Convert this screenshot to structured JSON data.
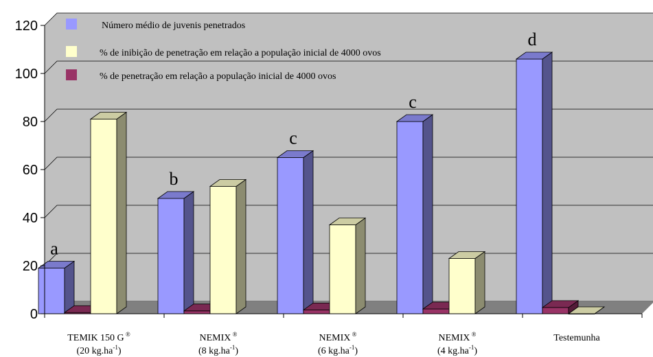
{
  "chart_data": {
    "type": "bar",
    "ylim": [
      0,
      120
    ],
    "yticks": [
      "0",
      "20",
      "40",
      "60",
      "80",
      "100",
      "120"
    ],
    "categories": [
      {
        "line1": "TEMIK 150 G",
        "line1_sup": "®",
        "line2": "(20 kg.ha",
        "line2_sup": "-1",
        "line2_end": ")"
      },
      {
        "line1": "NEMIX",
        "line1_sup": "®",
        "line2": "(8 kg.ha",
        "line2_sup": "-1",
        "line2_end": ")"
      },
      {
        "line1": "NEMIX",
        "line1_sup": "®",
        "line2": "(6 kg.ha",
        "line2_sup": "-1",
        "line2_end": ")"
      },
      {
        "line1": "NEMIX",
        "line1_sup": "®",
        "line2": "(4 kg.ha",
        "line2_sup": "-1",
        "line2_end": ")"
      },
      {
        "line1": "Testemunha",
        "line1_sup": "",
        "line2": "",
        "line2_sup": "",
        "line2_end": ""
      }
    ],
    "series": [
      {
        "name": "Número médio de juvenis penetrados",
        "values": [
          19,
          48,
          65,
          80,
          106
        ],
        "color": "#9999ff"
      },
      {
        "name": "% de penetração em relação a população inicial de 4000 ovos",
        "values": [
          0.5,
          1.2,
          1.6,
          2.0,
          2.6
        ],
        "color": "#993366"
      },
      {
        "name": "% de inibição de penetração em relação a população inicial de 4000 ovos",
        "values": [
          81,
          53,
          37,
          23,
          0
        ],
        "color": "#ffffcc"
      }
    ],
    "legend": [
      {
        "label": "Número médio de juvenis penetrados",
        "color": "#9999ff"
      },
      {
        "label": "% de inibição de penetração em relação a população inicial de 4000 ovos",
        "color": "#ffffcc"
      },
      {
        "label": "% de penetração em relação a população inicial de 4000 ovos",
        "color": "#993366"
      }
    ],
    "significance_labels": [
      "a",
      "b",
      "c",
      "c",
      "d"
    ],
    "legend_position": "top-left",
    "grid": true
  }
}
